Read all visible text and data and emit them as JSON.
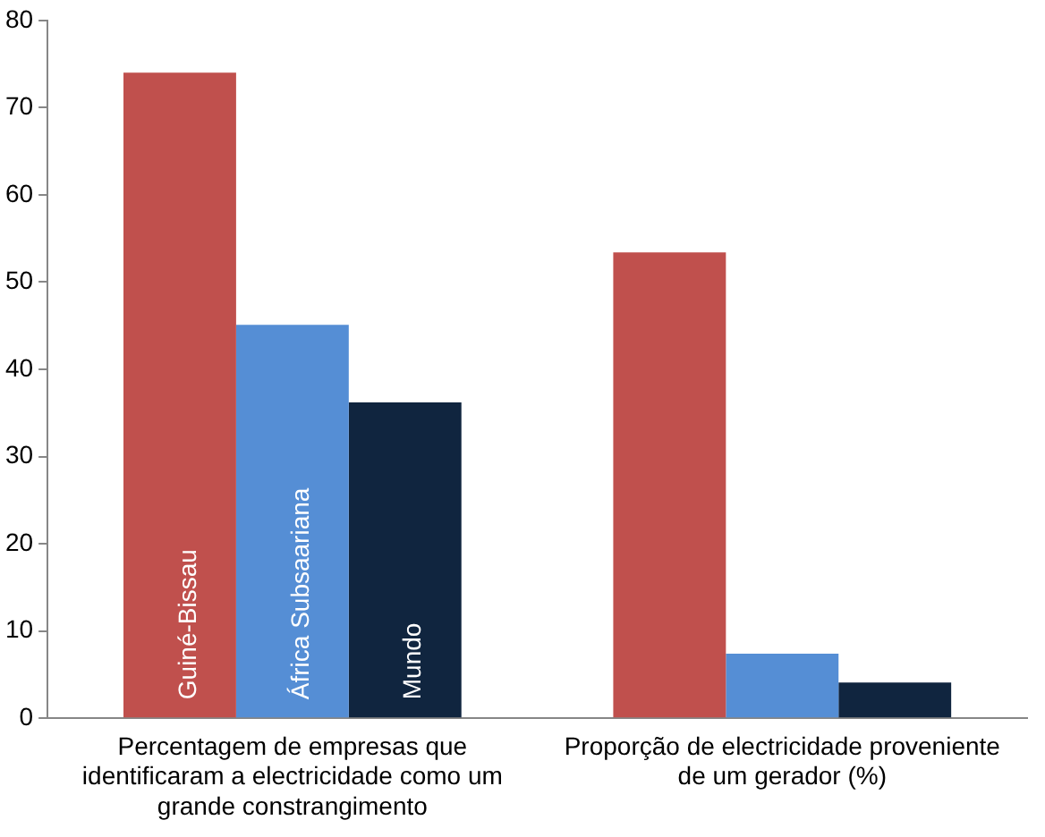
{
  "chart_data": {
    "type": "bar",
    "categories": [
      "Percentagem de empresas que identificaram a electricidade como um grande constrangimento",
      "Proporção de electricidade proveniente de um gerador (%)"
    ],
    "series": [
      {
        "name": "Guiné-Bissau",
        "color": "#c0504d",
        "values": [
          74,
          53.4
        ]
      },
      {
        "name": "África Subsaariana",
        "color": "#558ed5",
        "values": [
          45.1,
          7.4
        ]
      },
      {
        "name": "Mundo",
        "color": "#10253f",
        "values": [
          36.2,
          4.1
        ]
      }
    ],
    "ylim": [
      0,
      80
    ],
    "yticks": [
      0,
      10,
      20,
      30,
      40,
      50,
      60,
      70,
      80
    ],
    "grid": false,
    "legend": false
  }
}
